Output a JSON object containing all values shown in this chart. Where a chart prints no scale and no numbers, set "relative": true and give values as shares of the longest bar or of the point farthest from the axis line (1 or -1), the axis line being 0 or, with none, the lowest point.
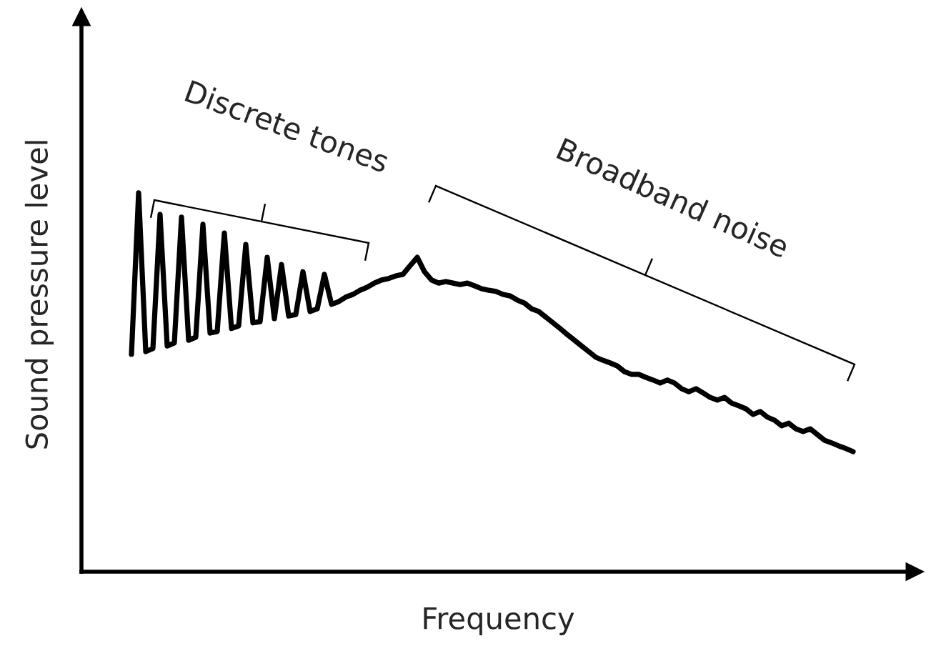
{
  "chart_data": {
    "type": "line",
    "relative": true,
    "xlabel": "Frequency",
    "ylabel": "Sound pressure level",
    "annotations": [
      "Discrete tones",
      "Broadband noise"
    ],
    "categories": [
      null,
      null,
      null,
      null,
      null,
      null,
      null,
      null,
      null,
      null,
      null,
      null,
      null,
      null,
      null,
      null,
      null,
      null,
      null,
      null,
      null,
      null,
      null,
      null,
      null,
      null,
      null,
      null,
      null,
      null,
      null,
      null,
      null,
      null,
      null,
      null,
      null,
      null,
      null,
      null,
      null,
      null,
      null,
      null,
      null,
      null,
      null,
      null,
      null,
      null,
      null,
      null,
      null,
      null,
      null,
      null,
      null,
      null,
      null,
      null,
      null,
      null,
      null,
      null,
      null,
      null,
      null,
      null,
      null,
      null,
      null,
      null,
      null,
      null,
      null,
      null,
      null,
      null,
      null,
      null,
      null,
      null,
      null,
      null,
      null,
      null,
      null,
      null,
      null,
      null,
      null,
      null,
      null,
      null,
      null,
      null,
      null,
      null,
      null,
      null,
      null,
      null
    ],
    "series": [
      {
        "color": "#000000",
        "values": [
          0.574,
          1.0,
          0.581,
          0.589,
          0.943,
          0.596,
          0.604,
          0.936,
          0.611,
          0.619,
          0.917,
          0.63,
          0.634,
          0.894,
          0.642,
          0.649,
          0.864,
          0.657,
          0.66,
          0.83,
          0.668,
          0.811,
          0.675,
          0.679,
          0.792,
          0.687,
          0.694,
          0.785,
          0.706,
          0.713,
          0.725,
          0.732,
          0.743,
          0.751,
          0.762,
          0.77,
          0.774,
          0.781,
          0.785,
          0.808,
          0.83,
          0.792,
          0.77,
          0.762,
          0.766,
          0.762,
          0.758,
          0.762,
          0.755,
          0.747,
          0.743,
          0.74,
          0.732,
          0.728,
          0.717,
          0.709,
          0.694,
          0.687,
          0.672,
          0.657,
          0.642,
          0.626,
          0.611,
          0.596,
          0.581,
          0.566,
          0.558,
          0.551,
          0.543,
          0.528,
          0.521,
          0.521,
          0.513,
          0.506,
          0.498,
          0.506,
          0.498,
          0.483,
          0.475,
          0.483,
          0.472,
          0.46,
          0.453,
          0.46,
          0.445,
          0.438,
          0.43,
          0.415,
          0.423,
          0.408,
          0.4,
          0.385,
          0.392,
          0.377,
          0.37,
          0.377,
          0.362,
          0.347,
          0.34,
          0.332,
          0.325,
          0.317
        ]
      }
    ]
  }
}
